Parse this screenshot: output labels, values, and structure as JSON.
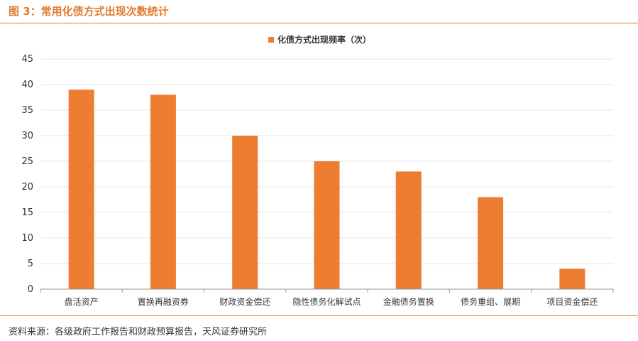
{
  "figure_title": "图 3：常用化债方式出现次数统计",
  "source_note": "资料来源：各级政府工作报告和财政预算报告，天风证券研究所",
  "colors": {
    "accent": "#e07b2e",
    "bar": "#ed7d31",
    "grid": "#e6e6e6",
    "axis": "#999999"
  },
  "chart_data": {
    "type": "bar",
    "categories": [
      "盘活资产",
      "置换再融资券",
      "财政资金偿还",
      "隐性债务化解试点",
      "金融债务置换",
      "债务重组、展期",
      "项目资金偿还"
    ],
    "series": [
      {
        "name": "化债方式出现频率（次）",
        "values": [
          39,
          38,
          30,
          25,
          23,
          18,
          4
        ]
      }
    ],
    "ylim": [
      0,
      45
    ],
    "yticks": [
      0,
      5,
      10,
      15,
      20,
      25,
      30,
      35,
      40,
      45
    ],
    "grid": true,
    "legend_position": "top-center"
  }
}
